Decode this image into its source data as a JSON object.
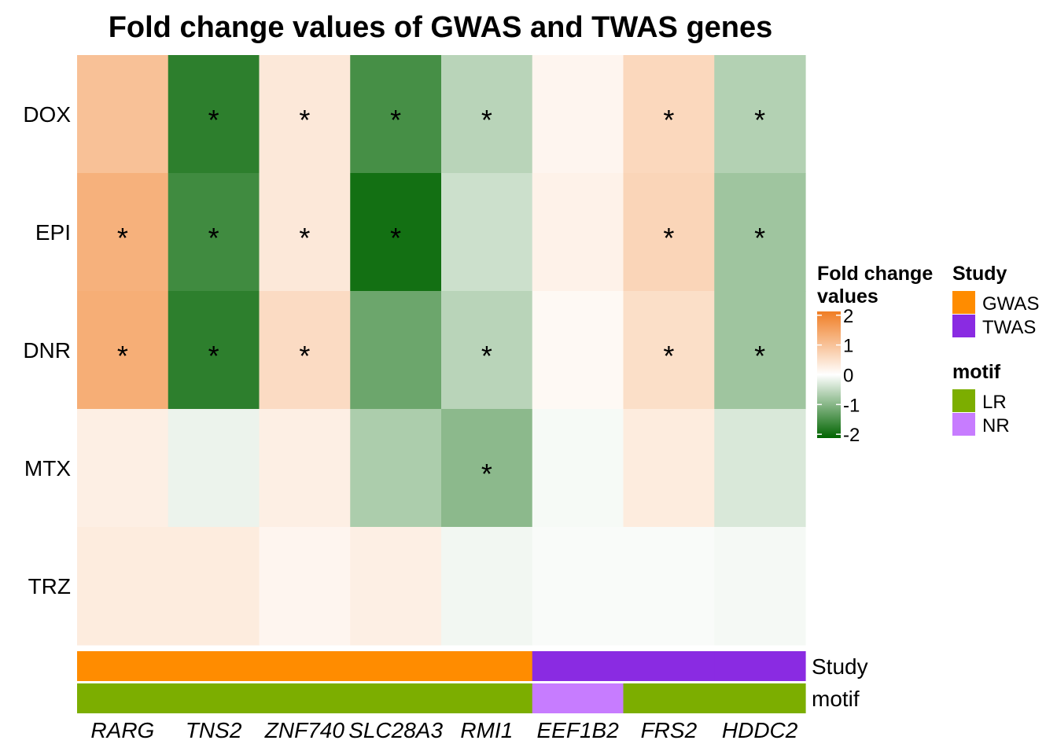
{
  "chart_data": {
    "type": "heatmap",
    "title": "Fold change values of GWAS and TWAS genes",
    "rows": [
      "DOX",
      "EPI",
      "DNR",
      "MTX",
      "TRZ"
    ],
    "columns": [
      "RARG",
      "TNS2",
      "ZNF740",
      "SLC28A3",
      "RMI1",
      "EEF1B2",
      "FRS2",
      "HDDC2"
    ],
    "values": [
      [
        0.95,
        -1.65,
        0.35,
        -1.45,
        -0.55,
        0.15,
        0.6,
        -0.6
      ],
      [
        1.2,
        -1.5,
        0.35,
        -1.85,
        -0.4,
        0.2,
        0.65,
        -0.75
      ],
      [
        1.25,
        -1.65,
        0.55,
        -1.15,
        -0.55,
        0.1,
        0.5,
        -0.75
      ],
      [
        0.25,
        -0.15,
        0.25,
        -0.65,
        -0.9,
        -0.07,
        0.3,
        -0.3
      ],
      [
        0.3,
        0.3,
        0.15,
        0.25,
        -0.1,
        -0.05,
        -0.05,
        -0.08
      ]
    ],
    "significant": [
      [
        false,
        true,
        true,
        true,
        true,
        false,
        true,
        true
      ],
      [
        true,
        true,
        true,
        true,
        false,
        false,
        true,
        true
      ],
      [
        true,
        true,
        true,
        false,
        true,
        false,
        true,
        true
      ],
      [
        false,
        false,
        false,
        false,
        true,
        false,
        false,
        false
      ],
      [
        false,
        false,
        false,
        false,
        false,
        false,
        false,
        false
      ]
    ],
    "significance_symbol": "*",
    "color_scale": {
      "title": "Fold change\nvalues",
      "min": -2,
      "max": 2,
      "ticks": [
        2,
        1,
        0,
        -1,
        -2
      ],
      "low_color": "#006400",
      "mid_color": "#ffffff",
      "high_color": "#f07d24"
    },
    "annotations": [
      {
        "name": "Study",
        "values": [
          "GWAS",
          "GWAS",
          "GWAS",
          "GWAS",
          "GWAS",
          "TWAS",
          "TWAS",
          "TWAS"
        ],
        "legend": [
          {
            "label": "GWAS",
            "color": "#ff8c00"
          },
          {
            "label": "TWAS",
            "color": "#8a2be2"
          }
        ]
      },
      {
        "name": "motif",
        "values": [
          "LR",
          "LR",
          "LR",
          "LR",
          "LR",
          "NR",
          "LR",
          "LR"
        ],
        "legend": [
          {
            "label": "LR",
            "color": "#7cae00"
          },
          {
            "label": "NR",
            "color": "#c77cff"
          }
        ]
      }
    ],
    "legend_placement": "right"
  }
}
